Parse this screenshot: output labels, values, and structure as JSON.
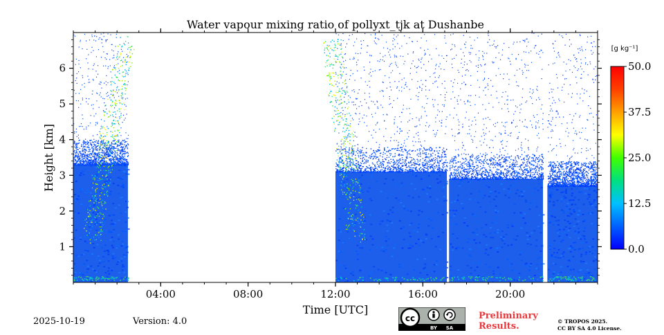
{
  "chart_data": {
    "type": "heatmap",
    "title": "Water vapour mixing ratio of pollyxt_tjk at Dushanbe",
    "xlabel": "Time [UTC]",
    "ylabel": "Height [km]",
    "xlim_hours": [
      0,
      24
    ],
    "ylim_km": [
      0,
      7
    ],
    "x_ticks": [
      {
        "hour": 4,
        "label": "04:00"
      },
      {
        "hour": 8,
        "label": "08:00"
      },
      {
        "hour": 12,
        "label": "12:00"
      },
      {
        "hour": 16,
        "label": "16:00"
      },
      {
        "hour": 20,
        "label": "20:00"
      }
    ],
    "y_ticks": [
      {
        "km": 1,
        "label": "1"
      },
      {
        "km": 2,
        "label": "2"
      },
      {
        "km": 3,
        "label": "3"
      },
      {
        "km": 4,
        "label": "4"
      },
      {
        "km": 5,
        "label": "5"
      },
      {
        "km": 6,
        "label": "6"
      }
    ],
    "colorbar": {
      "unit_label": "[g kg⁻¹]",
      "min": 0.0,
      "max": 50.0,
      "tick_values": [
        0.0,
        12.5,
        25.0,
        37.5,
        50.0
      ],
      "tick_labels": [
        "0.0",
        "12.5",
        "25.0",
        "37.5",
        "50.0"
      ],
      "colormap": [
        "#0000ff",
        "#0060ff",
        "#00c0ff",
        "#00e080",
        "#40ff00",
        "#ffff00",
        "#ffa000",
        "#ff4000",
        "#ff0000"
      ]
    },
    "measurement_periods_hours": [
      {
        "start": 0.0,
        "end": 2.5,
        "top_dense_km": 3.3
      },
      {
        "start": 12.0,
        "end": 17.1,
        "top_dense_km": 3.1
      },
      {
        "start": 17.2,
        "end": 21.5,
        "top_dense_km": 2.9
      },
      {
        "start": 21.7,
        "end": 24.0,
        "top_dense_km": 2.7
      }
    ],
    "data_gaps_hours": [
      [
        2.5,
        12.0
      ],
      [
        17.1,
        17.2
      ],
      [
        21.5,
        21.7
      ]
    ],
    "typical_value_below_boundary_layer_gkg": 4.0
  },
  "footer": {
    "date": "2025-10-19",
    "version": "Version: 4.0",
    "license_badge": [
      "BY",
      "SA"
    ],
    "preliminary_line1": "Preliminary",
    "preliminary_line2": "Results.",
    "copyright_line1": "© TROPOS 2025.",
    "copyright_line2": "CC BY SA 4.0 License."
  }
}
